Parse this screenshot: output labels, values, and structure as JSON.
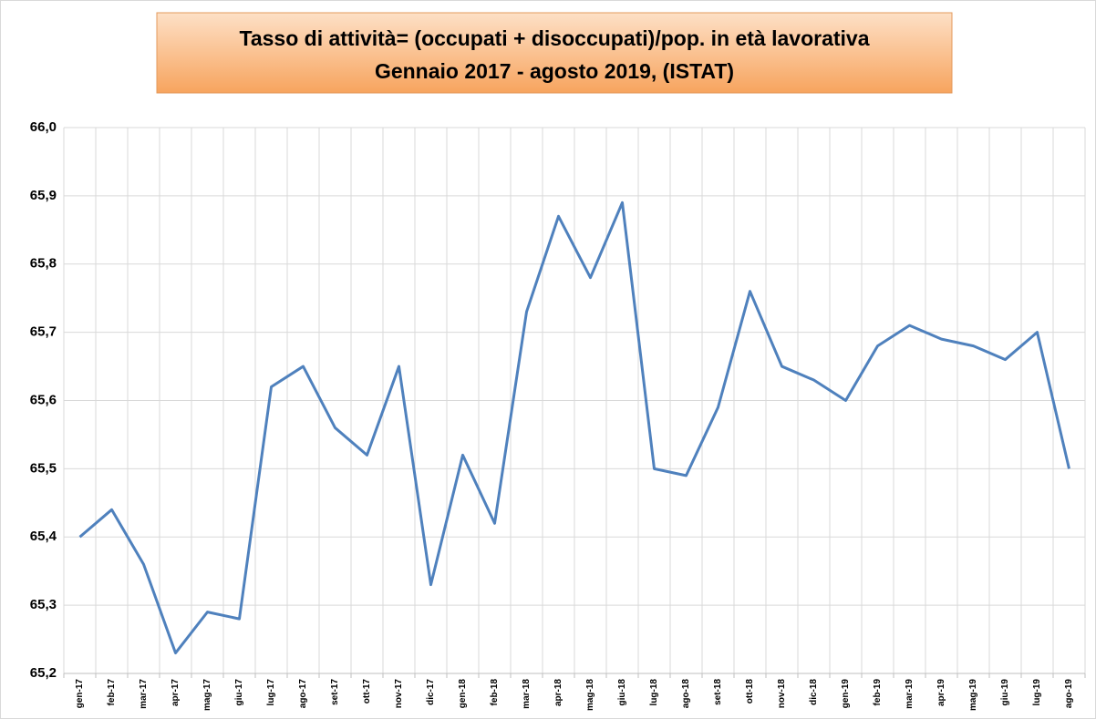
{
  "chart_data": {
    "type": "line",
    "title": "Tasso di attività= (occupati + disoccupati)/pop. in età lavorativa",
    "subtitle": "Gennaio 2017 - agosto 2019, (ISTAT)",
    "categories": [
      "gen-17",
      "feb-17",
      "mar-17",
      "apr-17",
      "mag-17",
      "giu-17",
      "lug-17",
      "ago-17",
      "set-17",
      "ott-17",
      "nov-17",
      "dic-17",
      "gen-18",
      "feb-18",
      "mar-18",
      "apr-18",
      "mag-18",
      "giu-18",
      "lug-18",
      "ago-18",
      "set-18",
      "ott-18",
      "nov-18",
      "dic-18",
      "gen-19",
      "feb-19",
      "mar-19",
      "apr-19",
      "mag-19",
      "giu-19",
      "lug-19",
      "ago-19"
    ],
    "series": [
      {
        "color": "#4f81bd",
        "values": [
          65.4,
          65.44,
          65.36,
          65.23,
          65.29,
          65.28,
          65.62,
          65.65,
          65.56,
          65.52,
          65.65,
          65.33,
          65.52,
          65.42,
          65.73,
          65.87,
          65.78,
          65.89,
          65.5,
          65.49,
          65.59,
          65.76,
          65.65,
          65.63,
          65.6,
          65.68,
          65.71,
          65.69,
          65.68,
          65.66,
          65.7,
          65.5
        ]
      }
    ],
    "ylim": [
      65.2,
      66.0
    ],
    "yticks": [
      {
        "value": 65.2,
        "label": "65,2"
      },
      {
        "value": 65.3,
        "label": "65,3"
      },
      {
        "value": 65.4,
        "label": "65,4"
      },
      {
        "value": 65.5,
        "label": "65,5"
      },
      {
        "value": 65.6,
        "label": "65,6"
      },
      {
        "value": 65.7,
        "label": "65,7"
      },
      {
        "value": 65.8,
        "label": "65,8"
      },
      {
        "value": 65.9,
        "label": "65,9"
      },
      {
        "value": 66.0,
        "label": "66,0"
      }
    ],
    "grid": true
  }
}
